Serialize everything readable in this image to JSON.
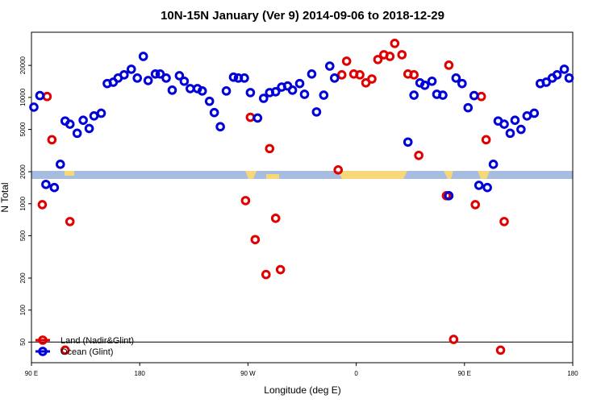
{
  "chart_data": {
    "type": "scatter",
    "title": "10N-15N January (Ver 9)   2014-09-06 to 2018-12-29",
    "xlabel": "Longitude (deg E)",
    "ylabel": "N Total",
    "log_y": true,
    "legend": "bottom-left",
    "hline": 50,
    "xlim": [
      90,
      540
    ],
    "ylim": [
      32,
      41000
    ],
    "xticks": [
      {
        "value": 90,
        "label": "90 E"
      },
      {
        "value": 180,
        "label": "180"
      },
      {
        "value": 270,
        "label": "90 W"
      },
      {
        "value": 360,
        "label": "0"
      },
      {
        "value": 450,
        "label": "90 E"
      },
      {
        "value": 540,
        "label": "180"
      }
    ],
    "yticks": [
      50,
      100,
      200,
      500,
      1000,
      2000,
      5000,
      10000,
      20000
    ],
    "series": [
      {
        "name": "Land (Nadir&Glint)",
        "color": "#e00000",
        "x": [
          99,
          103,
          107,
          118,
          122,
          272,
          268,
          276,
          285,
          288,
          293,
          297,
          345,
          348,
          352,
          358,
          363,
          368,
          373,
          378,
          383,
          388,
          392,
          398,
          403,
          408,
          412,
          435,
          437,
          441,
          459,
          464,
          468,
          480,
          483
        ],
        "values": [
          980,
          10200,
          4000,
          42,
          680,
          6500,
          1070,
          460,
          216,
          3300,
          730,
          240,
          2080,
          16300,
          21900,
          16600,
          16300,
          13700,
          14900,
          22700,
          25200,
          24300,
          32200,
          25200,
          16600,
          16300,
          2850,
          1190,
          20100,
          53,
          980,
          10200,
          4000,
          42,
          680
        ]
      },
      {
        "name": "Ocean (Glint)",
        "color": "#0000d8",
        "x": [
          92,
          97,
          102,
          109,
          114,
          118,
          122,
          128,
          133,
          138,
          142,
          148,
          153,
          158,
          162,
          167,
          173,
          178,
          183,
          187,
          193,
          197,
          202,
          207,
          213,
          217,
          222,
          228,
          232,
          238,
          242,
          247,
          252,
          258,
          262,
          267,
          272,
          278,
          283,
          288,
          293,
          298,
          303,
          307,
          313,
          317,
          323,
          327,
          333,
          338,
          342,
          403,
          408,
          413,
          417,
          423,
          427,
          432,
          437,
          443,
          448,
          453,
          458,
          462,
          469,
          474,
          478,
          483,
          488,
          492,
          497,
          502,
          508,
          513,
          518,
          523,
          527,
          533,
          537
        ],
        "values": [
          8100,
          10400,
          1520,
          1420,
          2350,
          6000,
          5600,
          4600,
          6100,
          5100,
          6700,
          7100,
          13500,
          13900,
          15200,
          16300,
          18400,
          15200,
          24300,
          14400,
          16600,
          16600,
          15200,
          11700,
          16000,
          14200,
          12100,
          12100,
          11500,
          9200,
          7200,
          5300,
          11500,
          15500,
          15200,
          15200,
          11100,
          6400,
          9800,
          11100,
          11300,
          12500,
          12800,
          11700,
          13500,
          10700,
          16600,
          7300,
          10500,
          19700,
          15200,
          3800,
          10500,
          13700,
          13000,
          14200,
          10700,
          10500,
          1190,
          15200,
          13500,
          8000,
          10400,
          1490,
          1420,
          2350,
          6000,
          5600,
          4600,
          6100,
          5000,
          6700,
          7100,
          13500,
          13900,
          15200,
          16300,
          18400,
          15200
        ]
      }
    ]
  }
}
